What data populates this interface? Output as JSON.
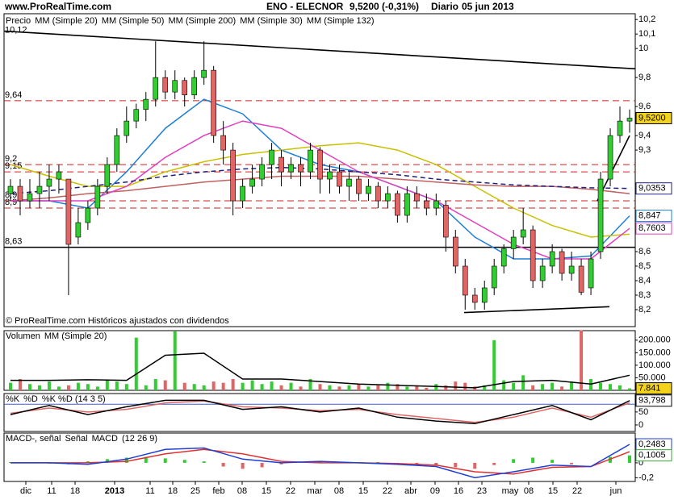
{
  "header": {
    "site": "www.ProRealTime.com",
    "title": "ENO - ELECNOR",
    "quote": "9,5200 (-0,31%)",
    "period": "Diario",
    "date": "05 jun 2013"
  },
  "x_labels": [
    "dic",
    "11",
    "18",
    "2013",
    "11",
    "18",
    "25",
    "feb",
    "08",
    "15",
    "22",
    "mar",
    "08",
    "15",
    "22",
    "abr",
    "09",
    "16",
    "23",
    "may",
    "08",
    "15",
    "22",
    "jun"
  ],
  "chart_data": [
    {
      "type": "candlestick",
      "name": "Precio",
      "up_color": "#33cc33",
      "down_color": "#e06666",
      "open": [
        9.0,
        9.05,
        8.95,
        9.0,
        9.05,
        9.1,
        9.1,
        8.7,
        8.8,
        8.9,
        9.05,
        9.2,
        9.4,
        9.5,
        9.58,
        9.65,
        9.8,
        9.7,
        9.78,
        9.68,
        9.8,
        9.85,
        9.4,
        9.3,
        8.95,
        9.05,
        9.1,
        9.2,
        9.25,
        9.15,
        9.2,
        9.15,
        9.3,
        9.1,
        9.15,
        9.05,
        9.1,
        9.0,
        9.05,
        8.95,
        9.0,
        8.85,
        9.0,
        8.95,
        8.9,
        8.92,
        8.7,
        8.5,
        8.3,
        8.25,
        8.35,
        8.5,
        8.62,
        8.7,
        8.75,
        8.4,
        8.5,
        8.6,
        8.45,
        8.5,
        8.35,
        8.6,
        9.1,
        9.4,
        9.5
      ],
      "high": [
        9.1,
        9.1,
        9.1,
        9.15,
        9.2,
        9.2,
        9.1,
        8.9,
        8.95,
        9.1,
        9.25,
        9.45,
        9.6,
        9.62,
        9.7,
        10.05,
        9.85,
        9.85,
        9.8,
        9.85,
        10.05,
        9.88,
        9.5,
        9.35,
        9.1,
        9.2,
        9.25,
        9.35,
        9.3,
        9.25,
        9.25,
        9.35,
        9.32,
        9.2,
        9.2,
        9.15,
        9.12,
        9.1,
        9.08,
        9.05,
        9.02,
        9.05,
        9.05,
        9.0,
        9.0,
        8.95,
        8.75,
        8.55,
        8.35,
        8.4,
        8.55,
        8.65,
        8.75,
        8.9,
        8.78,
        8.55,
        8.65,
        8.62,
        8.6,
        8.55,
        8.6,
        9.15,
        9.45,
        9.6,
        9.58
      ],
      "low": [
        8.95,
        8.85,
        8.9,
        8.9,
        8.95,
        9.0,
        8.3,
        8.65,
        8.75,
        8.85,
        9.0,
        9.15,
        9.35,
        9.45,
        9.5,
        9.6,
        9.65,
        9.65,
        9.6,
        9.65,
        9.75,
        9.35,
        9.2,
        8.85,
        8.9,
        9.0,
        9.05,
        9.1,
        9.05,
        9.1,
        9.05,
        9.1,
        9.0,
        9.0,
        9.0,
        8.95,
        8.95,
        8.95,
        8.9,
        8.9,
        8.8,
        8.8,
        8.9,
        8.85,
        8.85,
        8.6,
        8.45,
        8.2,
        8.2,
        8.2,
        8.3,
        8.45,
        8.55,
        8.65,
        8.35,
        8.35,
        8.45,
        8.4,
        8.4,
        8.3,
        8.3,
        8.55,
        9.05,
        9.35,
        9.42
      ],
      "close": [
        9.05,
        8.95,
        9.0,
        9.05,
        9.1,
        9.15,
        8.65,
        8.8,
        8.9,
        9.05,
        9.2,
        9.4,
        9.5,
        9.58,
        9.65,
        9.8,
        9.7,
        9.78,
        9.68,
        9.8,
        9.85,
        9.4,
        9.3,
        8.95,
        9.05,
        9.1,
        9.2,
        9.3,
        9.15,
        9.2,
        9.15,
        9.3,
        9.1,
        9.15,
        9.05,
        9.1,
        9.0,
        9.05,
        8.95,
        9.0,
        8.85,
        9.0,
        8.95,
        8.9,
        8.95,
        8.7,
        8.5,
        8.3,
        8.25,
        8.35,
        8.5,
        8.62,
        8.7,
        8.75,
        8.4,
        8.5,
        8.6,
        8.45,
        8.5,
        8.32,
        8.55,
        9.1,
        9.4,
        9.5,
        9.52
      ],
      "price_label": "9,5200",
      "series": [
        {
          "name": "MM (Simple 20)",
          "color": "#1e7fd6",
          "values": [
            8.95,
            8.95,
            8.9,
            9.15,
            9.45,
            9.65,
            9.55,
            9.3,
            9.2,
            9.15,
            9.05,
            8.95,
            8.7,
            8.55,
            8.55,
            8.57,
            8.847
          ],
          "last_label": "8,847"
        },
        {
          "name": "MM (Simple 50)",
          "color": "#c8c000",
          "values": [
            9.2,
            9.12,
            9.05,
            9.05,
            9.15,
            9.22,
            9.27,
            9.3,
            9.33,
            9.35,
            9.3,
            9.2,
            9.05,
            8.9,
            8.78,
            8.7,
            8.72
          ]
        },
        {
          "name": "MM (Simple 200)",
          "color": "#c06060",
          "values": [
            8.95,
            8.97,
            9.0,
            9.02,
            9.05,
            9.08,
            9.1,
            9.12,
            9.12,
            9.12,
            9.1,
            9.08,
            9.06,
            9.05,
            9.05,
            9.03,
            9.0
          ]
        },
        {
          "name": "MM (Simple 30)",
          "color": "#e040c0",
          "values": [
            8.95,
            8.95,
            8.95,
            9.05,
            9.25,
            9.4,
            9.5,
            9.45,
            9.3,
            9.15,
            9.05,
            8.95,
            8.8,
            8.65,
            8.55,
            8.55,
            8.7603
          ],
          "last_label": "8,7603"
        },
        {
          "name": "MM (Simple 132)",
          "color": "#202080",
          "dash": true,
          "values": [
            9.0,
            9.02,
            9.05,
            9.08,
            9.12,
            9.15,
            9.17,
            9.18,
            9.17,
            9.15,
            9.13,
            9.1,
            9.08,
            9.06,
            9.05,
            9.04,
            9.0353
          ],
          "last_label": "9,0353"
        }
      ],
      "levels": [
        {
          "value": 9.64,
          "label": "9,64",
          "style": "dashed"
        },
        {
          "value": 9.2,
          "label": "9,2",
          "style": "dashed"
        },
        {
          "value": 9.15,
          "label": "9,15",
          "style": "dashed"
        },
        {
          "value": 8.95,
          "label": "8,95",
          "style": "dashed"
        },
        {
          "value": 8.9,
          "label": "8,9",
          "style": "dashed"
        },
        {
          "value": 8.63,
          "label": "8,63",
          "style": "solid"
        }
      ],
      "trendline_label": "10,12",
      "trendlines": [
        {
          "from": 10.12,
          "to": 9.86
        },
        {
          "from": 8.18,
          "to": 8.22
        },
        {
          "from": 8.95,
          "to": 9.4
        }
      ],
      "ylim": [
        8.083,
        10.24
      ],
      "yticks": [
        {
          "value": 10.2,
          "label": "10,2"
        },
        {
          "value": 10.1,
          "label": "10,1"
        },
        10,
        {
          "value": 9.8,
          "label": "9,8"
        },
        {
          "value": 9.6,
          "label": "9,6"
        },
        {
          "value": 9.4,
          "label": "9,4"
        },
        {
          "value": 9.3,
          "label": "9,3"
        },
        {
          "value": 8.6,
          "label": "8,6"
        },
        {
          "value": 8.5,
          "label": "8,5"
        },
        {
          "value": 8.4,
          "label": "8,4"
        },
        {
          "value": 8.3,
          "label": "8,3"
        },
        {
          "value": 8.2,
          "label": "8,2"
        }
      ],
      "footer": "© ProRealTime.com  Históricos ajustados con dividendos"
    },
    {
      "type": "bar",
      "name": "Volumen",
      "up_color": "#33cc33",
      "down_color": "#e06666",
      "values": [
        30000,
        45000,
        25000,
        20000,
        35000,
        15000,
        20000,
        30000,
        25000,
        15000,
        40000,
        35000,
        25000,
        210000,
        20000,
        45000,
        40000,
        235000,
        30000,
        25000,
        20000,
        35000,
        30000,
        45000,
        30000,
        40000,
        25000,
        35000,
        20000,
        30000,
        15000,
        45000,
        25000,
        20000,
        15000,
        20000,
        25000,
        15000,
        20000,
        30000,
        25000,
        15000,
        20000,
        10000,
        25000,
        20000,
        35000,
        30000,
        15000,
        20000,
        200000,
        40000,
        30000,
        60000,
        20000,
        25000,
        30000,
        15000,
        35000,
        240000,
        45000,
        30000,
        25000,
        20000,
        7841
      ],
      "last_label": "7.841",
      "series": [
        {
          "name": "MM (Simple 20)",
          "color": "#000000",
          "values": [
            40000,
            40000,
            42000,
            40000,
            140000,
            148000,
            45000,
            45000,
            35000,
            25000,
            20000,
            15000,
            10000,
            35000,
            40000,
            25000,
            60000
          ]
        }
      ],
      "ylim": [
        0,
        238000
      ],
      "yticks": [
        {
          "value": 200000,
          "label": "200.000"
        },
        {
          "value": 150000,
          "label": "150.000"
        },
        {
          "value": 100000,
          "label": "100.000"
        },
        {
          "value": 50000,
          "label": "50.000"
        }
      ]
    },
    {
      "type": "line",
      "title": "%K %D (14 3 5)",
      "series": [
        {
          "name": "%D",
          "color": "#e06666",
          "values": [
            45,
            65,
            50,
            60,
            85,
            92,
            70,
            65,
            55,
            60,
            40,
            25,
            10,
            30,
            65,
            30,
            85
          ]
        },
        {
          "name": "%K",
          "color": "#000000",
          "values": [
            40,
            75,
            40,
            70,
            95,
            95,
            60,
            70,
            50,
            65,
            30,
            15,
            5,
            40,
            75,
            20,
            93.798
          ],
          "last_label": "93,798"
        }
      ],
      "levels": [
        80
      ],
      "ylim": [
        -25,
        121
      ],
      "yticks": [
        50,
        0
      ]
    },
    {
      "type": "macd",
      "title": "(12 26 9)",
      "histogram": {
        "name": "MACD-, señal",
        "color": "#33cc33",
        "values": [
          0.01,
          0.0,
          -0.01,
          -0.02,
          0.02,
          0.05,
          0.07,
          0.08,
          0.06,
          0.04,
          0.02,
          -0.05,
          -0.08,
          -0.06,
          -0.02,
          0.01,
          0.02,
          0.01,
          0.0,
          0.01,
          -0.01,
          -0.02,
          -0.03,
          -0.06,
          -0.08,
          -0.03,
          0.05,
          0.07,
          0.04,
          -0.02,
          0.0,
          0.08,
          0.1005
        ],
        "last_label": "0,1005"
      },
      "series": [
        {
          "name": "Señal",
          "color": "#e03030",
          "values": [
            0.0,
            0.0,
            0.0,
            0.02,
            0.12,
            0.18,
            0.12,
            0.02,
            0.0,
            0.0,
            -0.01,
            -0.03,
            -0.12,
            -0.15,
            -0.06,
            -0.05,
            0.15
          ]
        },
        {
          "name": "MACD",
          "color": "#1e3fd6",
          "values": [
            0.0,
            0.0,
            -0.02,
            0.05,
            0.18,
            0.2,
            0.05,
            0.0,
            0.02,
            0.0,
            -0.02,
            -0.05,
            -0.2,
            -0.12,
            -0.03,
            -0.05,
            0.2483
          ],
          "last_label": "0,2483"
        }
      ],
      "ylim": [
        -0.25,
        0.4
      ],
      "yticks": [
        0,
        {
          "value": -0.2,
          "label": "-0,2"
        }
      ]
    }
  ]
}
